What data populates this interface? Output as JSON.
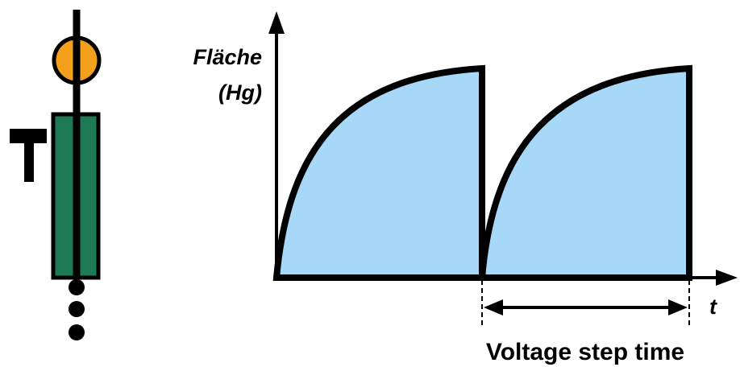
{
  "labels": {
    "y_axis_line1": "Fläche",
    "y_axis_line2": "(Hg)",
    "x_axis": "t",
    "interval_caption": "Voltage step time"
  },
  "colors": {
    "mercury_drop": "#F5A01A",
    "capillary": "#1E7A55",
    "surface_area_fill": "#A8D8F8",
    "line": "#000000"
  },
  "diagram": {
    "type": "dropping mercury electrode – surface area vs. time",
    "drop_cycles": 2,
    "falling_drops_shown": 3
  }
}
